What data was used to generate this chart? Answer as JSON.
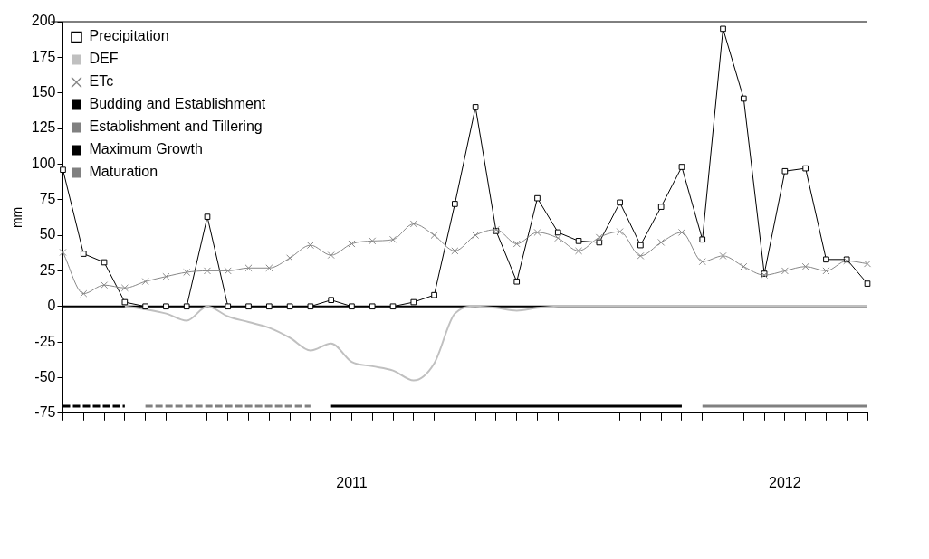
{
  "chart_data": {
    "type": "line",
    "ylabel": "mm",
    "categories": [
      null,
      null,
      null,
      null,
      null,
      null,
      null,
      null,
      null,
      null,
      null,
      null,
      null,
      null,
      "2011",
      null,
      null,
      null,
      null,
      null,
      null,
      null,
      null,
      null,
      null,
      null,
      null,
      null,
      null,
      null,
      null,
      null,
      null,
      null,
      null,
      "2012",
      null,
      null,
      null,
      null
    ],
    "ylim": [
      -75,
      200
    ],
    "yticks": [
      -75,
      -50,
      -25,
      0,
      25,
      50,
      75,
      100,
      125,
      150,
      175,
      200
    ],
    "grid": false,
    "legend": "top left",
    "ref_lines": [
      {
        "axis": "y",
        "value": 0,
        "color": "#000000"
      }
    ],
    "series": [
      {
        "name": "Precipitation",
        "color": "#000000",
        "marker": "square",
        "values": [
          96,
          37,
          31,
          3,
          0,
          0,
          0,
          63,
          0,
          0,
          0,
          0,
          0,
          4.5,
          0,
          0,
          0,
          3,
          8,
          72,
          140,
          53,
          17.5,
          76,
          52,
          46,
          45,
          73,
          43,
          70,
          98,
          47,
          195,
          146,
          23,
          95,
          97,
          33,
          33,
          16
        ]
      },
      {
        "name": "DEF",
        "color": "#c0c0c0",
        "marker": "none",
        "values": [
          null,
          null,
          null,
          0,
          -2,
          -5,
          -10,
          0,
          -7,
          -11,
          -15,
          -22,
          -31,
          -26,
          -39,
          -42,
          -45,
          -52,
          -40,
          -5,
          0,
          -1,
          -3,
          -1,
          0,
          0,
          0,
          0,
          0,
          0,
          0,
          0,
          0,
          0,
          0,
          0,
          0,
          0,
          0,
          0
        ]
      },
      {
        "name": "ETc",
        "color": "#888888",
        "marker": "cross",
        "values": [
          38,
          9,
          15,
          13,
          17.5,
          21,
          24,
          25,
          25,
          27,
          27,
          34,
          43,
          36,
          44,
          46,
          47,
          58,
          50,
          39,
          50,
          54,
          44,
          52,
          48,
          39,
          48.5,
          52.5,
          35.5,
          45,
          52,
          31.5,
          35.5,
          28,
          22,
          25,
          28,
          25,
          32,
          30
        ]
      },
      {
        "name": "Budding and Establishment",
        "color": "#000000",
        "marker": "none",
        "line_style": "dashed",
        "values": [
          -70,
          -70,
          -70,
          -70,
          null,
          null,
          null,
          null,
          null,
          null,
          null,
          null,
          null,
          null,
          null,
          null,
          null,
          null,
          null,
          null,
          null,
          null,
          null,
          null,
          null,
          null,
          null,
          null,
          null,
          null,
          null,
          null,
          null,
          null,
          null,
          null,
          null,
          null,
          null,
          null
        ]
      },
      {
        "name": "Establishment and Tillering",
        "color": "#808080",
        "marker": "none",
        "line_style": "dashed",
        "values": [
          null,
          null,
          null,
          null,
          -70,
          -70,
          -70,
          -70,
          -70,
          -70,
          -70,
          -70,
          -70,
          null,
          null,
          null,
          null,
          null,
          null,
          null,
          null,
          null,
          null,
          null,
          null,
          null,
          null,
          null,
          null,
          null,
          null,
          null,
          null,
          null,
          null,
          null,
          null,
          null,
          null,
          null
        ]
      },
      {
        "name": "Maximum Growth",
        "color": "#000000",
        "marker": "none",
        "line_style": "solid",
        "values": [
          null,
          null,
          null,
          null,
          null,
          null,
          null,
          null,
          null,
          null,
          null,
          null,
          null,
          -70,
          -70,
          -70,
          -70,
          -70,
          -70,
          -70,
          -70,
          -70,
          -70,
          -70,
          -70,
          -70,
          -70,
          -70,
          -70,
          -70,
          -70,
          null,
          null,
          null,
          null,
          null,
          null,
          null,
          null,
          null
        ]
      },
      {
        "name": "Maturation",
        "color": "#808080",
        "marker": "none",
        "line_style": "solid",
        "values": [
          null,
          null,
          null,
          null,
          null,
          null,
          null,
          null,
          null,
          null,
          null,
          null,
          null,
          null,
          null,
          null,
          null,
          null,
          null,
          null,
          null,
          null,
          null,
          null,
          null,
          null,
          null,
          null,
          null,
          null,
          null,
          -70,
          -70,
          -70,
          -70,
          -70,
          -70,
          -70,
          -70,
          -70
        ]
      }
    ]
  }
}
